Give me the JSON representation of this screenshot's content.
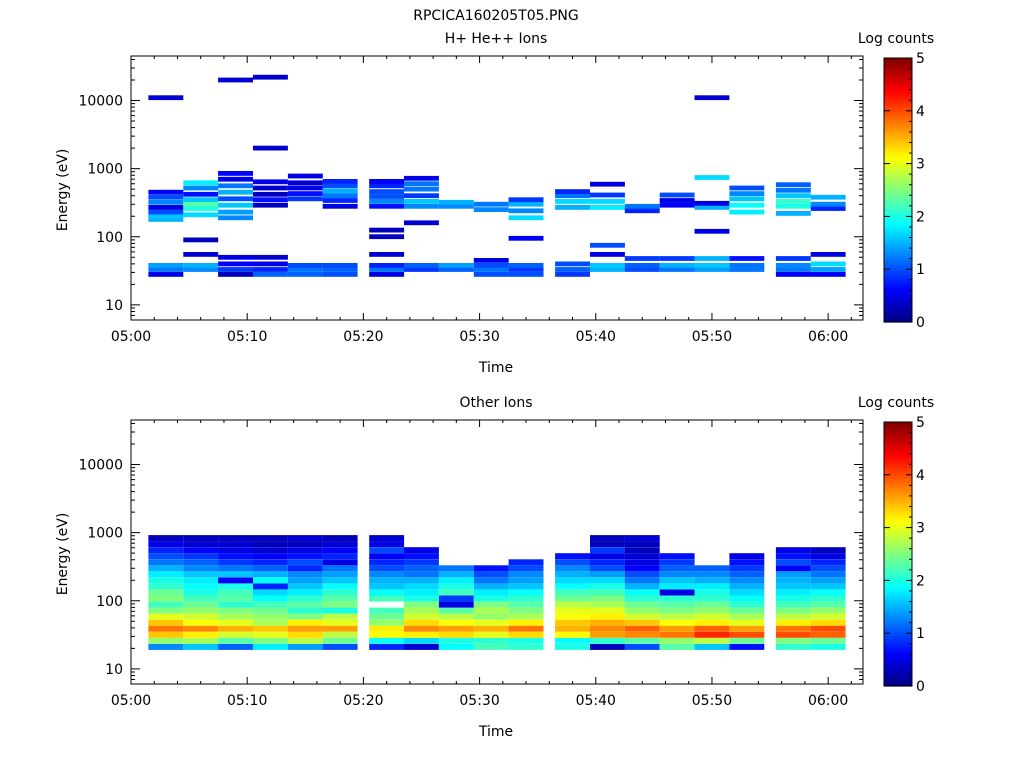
{
  "figure": {
    "title": "RPCICA160205T05.PNG"
  },
  "colorbar_scale": [
    "#00007f",
    "#0000ff",
    "#007fff",
    "#00ffff",
    "#7fff7f",
    "#ffff00",
    "#ff7f00",
    "#ff0000",
    "#7f0000"
  ],
  "chart_data": [
    {
      "type": "heatmap",
      "title": "H+ He++ Ions",
      "xlabel": "Time",
      "ylabel": "Energy (eV)",
      "xticks": [
        "05:00",
        "05:10",
        "05:20",
        "05:30",
        "05:40",
        "05:50",
        "06:00"
      ],
      "xlim": [
        "05:00",
        "06:03"
      ],
      "yscale": "log",
      "yticks": [
        10,
        100,
        1000,
        10000
      ],
      "ylim": [
        6,
        45000
      ],
      "colorbar": {
        "label": "Log counts",
        "range": [
          0,
          5
        ],
        "ticks": [
          0,
          1,
          2,
          3,
          4,
          5
        ],
        "colormap": "jet"
      },
      "time_bins": [
        "05:03",
        "05:06",
        "05:09",
        "05:12",
        "05:15",
        "05:18",
        "05:22",
        "05:25",
        "05:28",
        "05:31",
        "05:34",
        "05:38",
        "05:41",
        "05:44",
        "05:47",
        "05:50",
        "05:53",
        "05:57",
        "06:00"
      ],
      "cells": [
        [
          0,
          28,
          0.5
        ],
        [
          0,
          33,
          1.2
        ],
        [
          0,
          38,
          1.4
        ],
        [
          0,
          180,
          1.5
        ],
        [
          0,
          200,
          1.6
        ],
        [
          0,
          230,
          1.0
        ],
        [
          0,
          270,
          0.5
        ],
        [
          0,
          320,
          1.3
        ],
        [
          0,
          380,
          1.0
        ],
        [
          0,
          450,
          0.6
        ],
        [
          0,
          11000,
          0.4
        ],
        [
          1,
          33,
          1.3
        ],
        [
          1,
          38,
          1.5
        ],
        [
          1,
          55,
          0.4
        ],
        [
          1,
          90,
          0.3
        ],
        [
          1,
          210,
          1.7
        ],
        [
          1,
          260,
          2.0
        ],
        [
          1,
          300,
          2.3
        ],
        [
          1,
          350,
          1.6
        ],
        [
          1,
          420,
          0.7
        ],
        [
          1,
          520,
          1.3
        ],
        [
          1,
          620,
          1.8
        ],
        [
          2,
          28,
          0.3
        ],
        [
          2,
          33,
          0.9
        ],
        [
          2,
          40,
          0.6
        ],
        [
          2,
          50,
          0.5
        ],
        [
          2,
          190,
          1.3
        ],
        [
          2,
          230,
          1.4
        ],
        [
          2,
          290,
          1.6
        ],
        [
          2,
          360,
          1.0
        ],
        [
          2,
          450,
          1.5
        ],
        [
          2,
          560,
          1.2
        ],
        [
          2,
          700,
          0.5
        ],
        [
          2,
          850,
          0.6
        ],
        [
          2,
          20000,
          0.4
        ],
        [
          3,
          28,
          1.1
        ],
        [
          3,
          33,
          0.8
        ],
        [
          3,
          40,
          0.5
        ],
        [
          3,
          50,
          0.4
        ],
        [
          3,
          290,
          0.3
        ],
        [
          3,
          350,
          0.7
        ],
        [
          3,
          420,
          0.3
        ],
        [
          3,
          520,
          0.4
        ],
        [
          3,
          640,
          0.5
        ],
        [
          3,
          2000,
          0.4
        ],
        [
          3,
          22000,
          0.4
        ],
        [
          4,
          28,
          1.1
        ],
        [
          4,
          33,
          1.2
        ],
        [
          4,
          38,
          1.0
        ],
        [
          4,
          360,
          0.9
        ],
        [
          4,
          430,
          0.7
        ],
        [
          4,
          520,
          0.5
        ],
        [
          4,
          620,
          0.4
        ],
        [
          4,
          780,
          0.5
        ],
        [
          5,
          28,
          1.0
        ],
        [
          5,
          33,
          1.1
        ],
        [
          5,
          38,
          1.0
        ],
        [
          5,
          280,
          0.5
        ],
        [
          5,
          340,
          0.8
        ],
        [
          5,
          400,
          1.2
        ],
        [
          5,
          470,
          1.5
        ],
        [
          5,
          560,
          1.0
        ],
        [
          5,
          650,
          0.8
        ],
        [
          6,
          28,
          0.5
        ],
        [
          6,
          33,
          1.2
        ],
        [
          6,
          38,
          0.8
        ],
        [
          6,
          55,
          0.4
        ],
        [
          6,
          100,
          0.3
        ],
        [
          6,
          125,
          0.3
        ],
        [
          6,
          280,
          0.7
        ],
        [
          6,
          330,
          1.3
        ],
        [
          6,
          390,
          1.0
        ],
        [
          6,
          460,
          1.0
        ],
        [
          6,
          560,
          0.8
        ],
        [
          6,
          650,
          0.6
        ],
        [
          7,
          33,
          0.9
        ],
        [
          7,
          38,
          1.1
        ],
        [
          7,
          160,
          0.4
        ],
        [
          7,
          280,
          1.3
        ],
        [
          7,
          330,
          1.6
        ],
        [
          7,
          400,
          0.9
        ],
        [
          7,
          500,
          1.2
        ],
        [
          7,
          600,
          1.2
        ],
        [
          7,
          720,
          0.5
        ],
        [
          8,
          33,
          1.1
        ],
        [
          8,
          38,
          1.4
        ],
        [
          8,
          280,
          1.3
        ],
        [
          8,
          320,
          1.5
        ],
        [
          9,
          28,
          1.0
        ],
        [
          9,
          33,
          1.2
        ],
        [
          9,
          38,
          1.0
        ],
        [
          9,
          45,
          0.5
        ],
        [
          9,
          250,
          1.3
        ],
        [
          9,
          300,
          1.2
        ],
        [
          10,
          28,
          1.0
        ],
        [
          10,
          33,
          0.9
        ],
        [
          10,
          38,
          1.1
        ],
        [
          10,
          95,
          0.6
        ],
        [
          10,
          190,
          1.7
        ],
        [
          10,
          240,
          1.3
        ],
        [
          10,
          300,
          1.5
        ],
        [
          10,
          350,
          0.9
        ],
        [
          11,
          28,
          0.9
        ],
        [
          11,
          33,
          1.1
        ],
        [
          11,
          40,
          1.0
        ],
        [
          11,
          270,
          1.5
        ],
        [
          11,
          330,
          1.7
        ],
        [
          11,
          400,
          1.2
        ],
        [
          11,
          460,
          0.8
        ],
        [
          12,
          33,
          1.5
        ],
        [
          12,
          38,
          1.6
        ],
        [
          12,
          55,
          0.5
        ],
        [
          12,
          75,
          1.0
        ],
        [
          12,
          270,
          1.8
        ],
        [
          12,
          330,
          1.7
        ],
        [
          12,
          410,
          0.9
        ],
        [
          12,
          590,
          0.5
        ],
        [
          13,
          33,
          1.0
        ],
        [
          13,
          38,
          1.1
        ],
        [
          13,
          48,
          0.9
        ],
        [
          13,
          240,
          0.8
        ],
        [
          13,
          280,
          1.2
        ],
        [
          14,
          33,
          1.2
        ],
        [
          14,
          38,
          1.5
        ],
        [
          14,
          48,
          0.9
        ],
        [
          14,
          290,
          0.6
        ],
        [
          14,
          340,
          0.5
        ],
        [
          14,
          410,
          1.0
        ],
        [
          15,
          33,
          1.4
        ],
        [
          15,
          38,
          1.6
        ],
        [
          15,
          48,
          1.5
        ],
        [
          15,
          120,
          0.5
        ],
        [
          15,
          270,
          1.5
        ],
        [
          15,
          310,
          0.5
        ],
        [
          15,
          740,
          1.7
        ],
        [
          15,
          11000,
          0.4
        ],
        [
          16,
          33,
          1.2
        ],
        [
          16,
          38,
          1.2
        ],
        [
          16,
          48,
          0.7
        ],
        [
          16,
          230,
          1.8
        ],
        [
          16,
          290,
          1.9
        ],
        [
          16,
          360,
          1.6
        ],
        [
          16,
          430,
          1.3
        ],
        [
          16,
          520,
          1.0
        ],
        [
          17,
          28,
          0.6
        ],
        [
          17,
          33,
          1.2
        ],
        [
          17,
          38,
          1.3
        ],
        [
          17,
          48,
          0.9
        ],
        [
          17,
          220,
          1.5
        ],
        [
          17,
          280,
          2.0
        ],
        [
          17,
          330,
          2.1
        ],
        [
          17,
          400,
          1.6
        ],
        [
          17,
          480,
          1.2
        ],
        [
          17,
          580,
          1.1
        ],
        [
          18,
          28,
          0.6
        ],
        [
          18,
          33,
          1.4
        ],
        [
          18,
          40,
          1.7
        ],
        [
          18,
          55,
          0.5
        ],
        [
          18,
          260,
          0.8
        ],
        [
          18,
          300,
          1.3
        ],
        [
          18,
          380,
          1.5
        ]
      ]
    },
    {
      "type": "heatmap",
      "title": "Other Ions",
      "xlabel": "Time",
      "ylabel": "Energy (eV)",
      "xticks": [
        "05:00",
        "05:10",
        "05:20",
        "05:30",
        "05:40",
        "05:50",
        "06:00"
      ],
      "xlim": [
        "05:00",
        "06:03"
      ],
      "yscale": "log",
      "yticks": [
        10,
        100,
        1000,
        10000
      ],
      "ylim": [
        6,
        45000
      ],
      "colorbar": {
        "label": "Log counts",
        "range": [
          0,
          5
        ],
        "ticks": [
          0,
          1,
          2,
          3,
          4,
          5
        ],
        "colormap": "jet"
      },
      "time_bins": [
        "05:03",
        "05:06",
        "05:09",
        "05:12",
        "05:15",
        "05:18",
        "05:22",
        "05:25",
        "05:28",
        "05:31",
        "05:34",
        "05:38",
        "05:41",
        "05:44",
        "05:47",
        "05:50",
        "05:53",
        "05:57",
        "06:00"
      ],
      "profiles": [
        [
          1.3,
          2.6,
          3.4,
          3.8,
          3.4,
          3.0,
          2.5,
          2.2,
          2.5,
          2.4,
          2.1,
          2.0,
          1.8,
          1.5,
          1.2,
          1.0,
          0.8,
          0.5,
          0.3
        ],
        [
          1.6,
          2.7,
          3.2,
          3.7,
          3.1,
          2.9,
          2.6,
          2.4,
          2.2,
          2.0,
          1.9,
          1.8,
          1.6,
          1.3,
          1.1,
          0.9,
          0.6,
          0.4,
          0.3
        ],
        [
          1.1,
          2.3,
          2.9,
          3.5,
          3.0,
          2.7,
          2.5,
          2.1,
          2.3,
          2.2,
          2.0,
          0.6,
          1.6,
          1.2,
          0.9,
          0.7,
          0.5,
          0.4,
          0.3
        ],
        [
          1.8,
          2.5,
          3.0,
          3.4,
          2.7,
          2.6,
          2.4,
          2.2,
          1.9,
          1.7,
          0.8,
          1.9,
          1.5,
          1.1,
          0.8,
          0.6,
          0.4,
          0.3,
          0.3
        ],
        [
          1.4,
          2.8,
          3.3,
          3.6,
          3.2,
          2.5,
          2.1,
          2.3,
          2.1,
          1.8,
          1.6,
          1.4,
          1.3,
          0.8,
          1.0,
          0.7,
          0.5,
          0.3,
          0.4
        ],
        [
          1.0,
          2.4,
          2.8,
          3.6,
          3.0,
          2.8,
          2.0,
          2.5,
          2.3,
          2.1,
          1.9,
          1.6,
          1.4,
          1.2,
          0.5,
          0.8,
          0.6,
          0.4,
          0.3
        ],
        [
          0.8,
          1.9,
          3.1,
          3.2,
          2.6,
          2.4,
          2.2,
          -1,
          2.2,
          1.9,
          1.6,
          1.5,
          1.3,
          1.0,
          0.8,
          0.6,
          1.0,
          0.5,
          0.4
        ],
        [
          0.4,
          1.7,
          3.2,
          3.7,
          3.3,
          2.9,
          2.7,
          2.5,
          2.0,
          1.8,
          1.7,
          1.5,
          1.2,
          1.1,
          0.9,
          0.7,
          0.5,
          -1,
          -1
        ],
        [
          1.9,
          2.0,
          3.3,
          3.6,
          3.1,
          2.8,
          2.3,
          0.5,
          0.9,
          2.2,
          2.0,
          1.8,
          1.5,
          1.2,
          -1,
          -1,
          -1,
          -1,
          -1
        ],
        [
          2.2,
          2.1,
          3.0,
          3.5,
          3.0,
          2.6,
          2.7,
          2.5,
          2.0,
          1.8,
          1.5,
          1.2,
          1.0,
          0.7,
          -1,
          -1,
          -1,
          -1,
          -1
        ],
        [
          2.1,
          2.0,
          3.3,
          3.8,
          3.2,
          2.7,
          2.5,
          2.3,
          2.1,
          1.9,
          1.6,
          1.4,
          1.3,
          1.0,
          0.8,
          -1,
          -1,
          -1,
          -1
        ],
        [
          2.0,
          1.9,
          3.1,
          3.5,
          3.4,
          3.1,
          3.0,
          2.8,
          2.4,
          2.2,
          1.9,
          1.7,
          1.5,
          1.3,
          1.0,
          0.7,
          -1,
          -1,
          -1
        ],
        [
          0.3,
          2.1,
          3.6,
          3.7,
          3.5,
          3.2,
          3.0,
          2.7,
          2.5,
          2.2,
          2.0,
          1.7,
          1.4,
          1.0,
          0.8,
          0.5,
          0.9,
          0.3,
          0.3
        ],
        [
          1.0,
          2.3,
          3.7,
          3.9,
          3.4,
          2.9,
          2.6,
          2.4,
          2.1,
          1.9,
          1.5,
          1.2,
          1.0,
          0.6,
          0.5,
          0.4,
          0.3,
          0.3,
          0.4
        ],
        [
          2.3,
          2.6,
          3.8,
          3.6,
          3.1,
          2.8,
          2.5,
          2.3,
          2.1,
          0.5,
          1.8,
          1.6,
          1.3,
          1.1,
          0.9,
          0.7,
          -1,
          -1,
          -1
        ],
        [
          1.6,
          2.8,
          4.2,
          3.9,
          3.2,
          2.9,
          2.6,
          2.4,
          2.1,
          2.0,
          1.8,
          1.5,
          1.3,
          1.1,
          -1,
          -1,
          -1,
          -1,
          -1
        ],
        [
          0.7,
          2.4,
          4.0,
          3.6,
          3.0,
          2.7,
          2.4,
          2.1,
          1.9,
          1.7,
          1.5,
          1.3,
          1.1,
          0.9,
          0.7,
          0.5,
          -1,
          -1,
          -1
        ],
        [
          2.1,
          2.5,
          4.0,
          3.8,
          3.2,
          2.8,
          2.5,
          2.2,
          2.0,
          1.8,
          1.6,
          1.5,
          1.4,
          0.6,
          1.0,
          0.7,
          0.5,
          -1,
          -1
        ],
        [
          2.0,
          2.4,
          3.9,
          4.0,
          3.3,
          2.9,
          2.6,
          2.3,
          2.1,
          1.9,
          1.6,
          1.4,
          1.2,
          1.0,
          0.8,
          0.5,
          0.3,
          -1,
          -1
        ]
      ]
    }
  ]
}
